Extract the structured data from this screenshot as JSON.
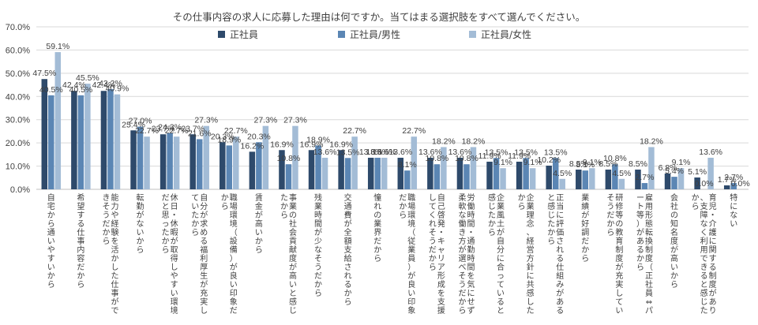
{
  "chart_data": {
    "type": "bar",
    "title": "その仕事内容の求人に応募した理由は何ですか。当てはまる選択肢をすべて選んでください。",
    "ylim": [
      0,
      70
    ],
    "yticks": [
      "0.0%",
      "10.0%",
      "20.0%",
      "30.0%",
      "40.0%",
      "50.0%",
      "60.0%",
      "70.0%"
    ],
    "legend_position": "top",
    "colors": [
      "#2e4a6b",
      "#5b86b4",
      "#a3bcd6"
    ],
    "series": [
      {
        "name": "正社員",
        "values": [
          47.5,
          42.4,
          42.4,
          25.4,
          23.7,
          23.7,
          20.3,
          16.2,
          16.9,
          16.9,
          16.9,
          13.6,
          13.6,
          13.6,
          13.6,
          11.9,
          11.9,
          10.2,
          8.5,
          8.5,
          8.5,
          6.8,
          5.1,
          1.7
        ]
      },
      {
        "name": "正社員/男性",
        "values": [
          40.5,
          40.5,
          43.2,
          27.0,
          24.3,
          21.6,
          18.9,
          20.3,
          10.8,
          18.9,
          13.5,
          13.6,
          8.1,
          10.8,
          10.8,
          13.5,
          13.5,
          13.5,
          8.1,
          10.8,
          2.7,
          5.4,
          0.0,
          2.7
        ]
      },
      {
        "name": "正社員/女性",
        "values": [
          59.1,
          45.5,
          40.9,
          22.7,
          22.7,
          27.3,
          22.7,
          27.3,
          27.3,
          13.6,
          22.7,
          13.6,
          22.7,
          18.2,
          18.2,
          9.1,
          9.1,
          4.5,
          9.1,
          4.5,
          18.2,
          9.1,
          13.6,
          0.0
        ]
      }
    ],
    "categories": [
      "自宅から通いやすいから",
      "希望する仕事内容だから",
      "能力や経験を活かした仕事ができそうだから",
      "転勤がないから",
      "休日・休暇が取得しやすい環境だと思ったから",
      "自分が求める福利厚生が充実していたから",
      "職場環境（設備）が良い印象だから",
      "賃金が高いから",
      "事業の社会貢献度が高いと感じたから",
      "残業時間が少なそうだから",
      "交通費が全額支給されるから",
      "憧れの業界だから",
      "職場環境（従業員）が良い印象だから",
      "自己啓発・キャリア形成を支援してくれそうだから",
      "労働時間・通勤時間を気にせず柔軟な働き方が選べそうだから",
      "企業風土が自分に合っていると感じたから",
      "企業理念、経営方針に共感したから",
      "正当に評価される仕組みがあると感じたから",
      "業績が好調だから",
      "研修等の教育制度が充実していそうだから",
      "雇用形態転換制度（正社員⇔パート等）があるから",
      "会社の知名度が高いから",
      "育児・介護に関する制度があり、支障なく利用できると感じたから",
      "特にない"
    ]
  }
}
